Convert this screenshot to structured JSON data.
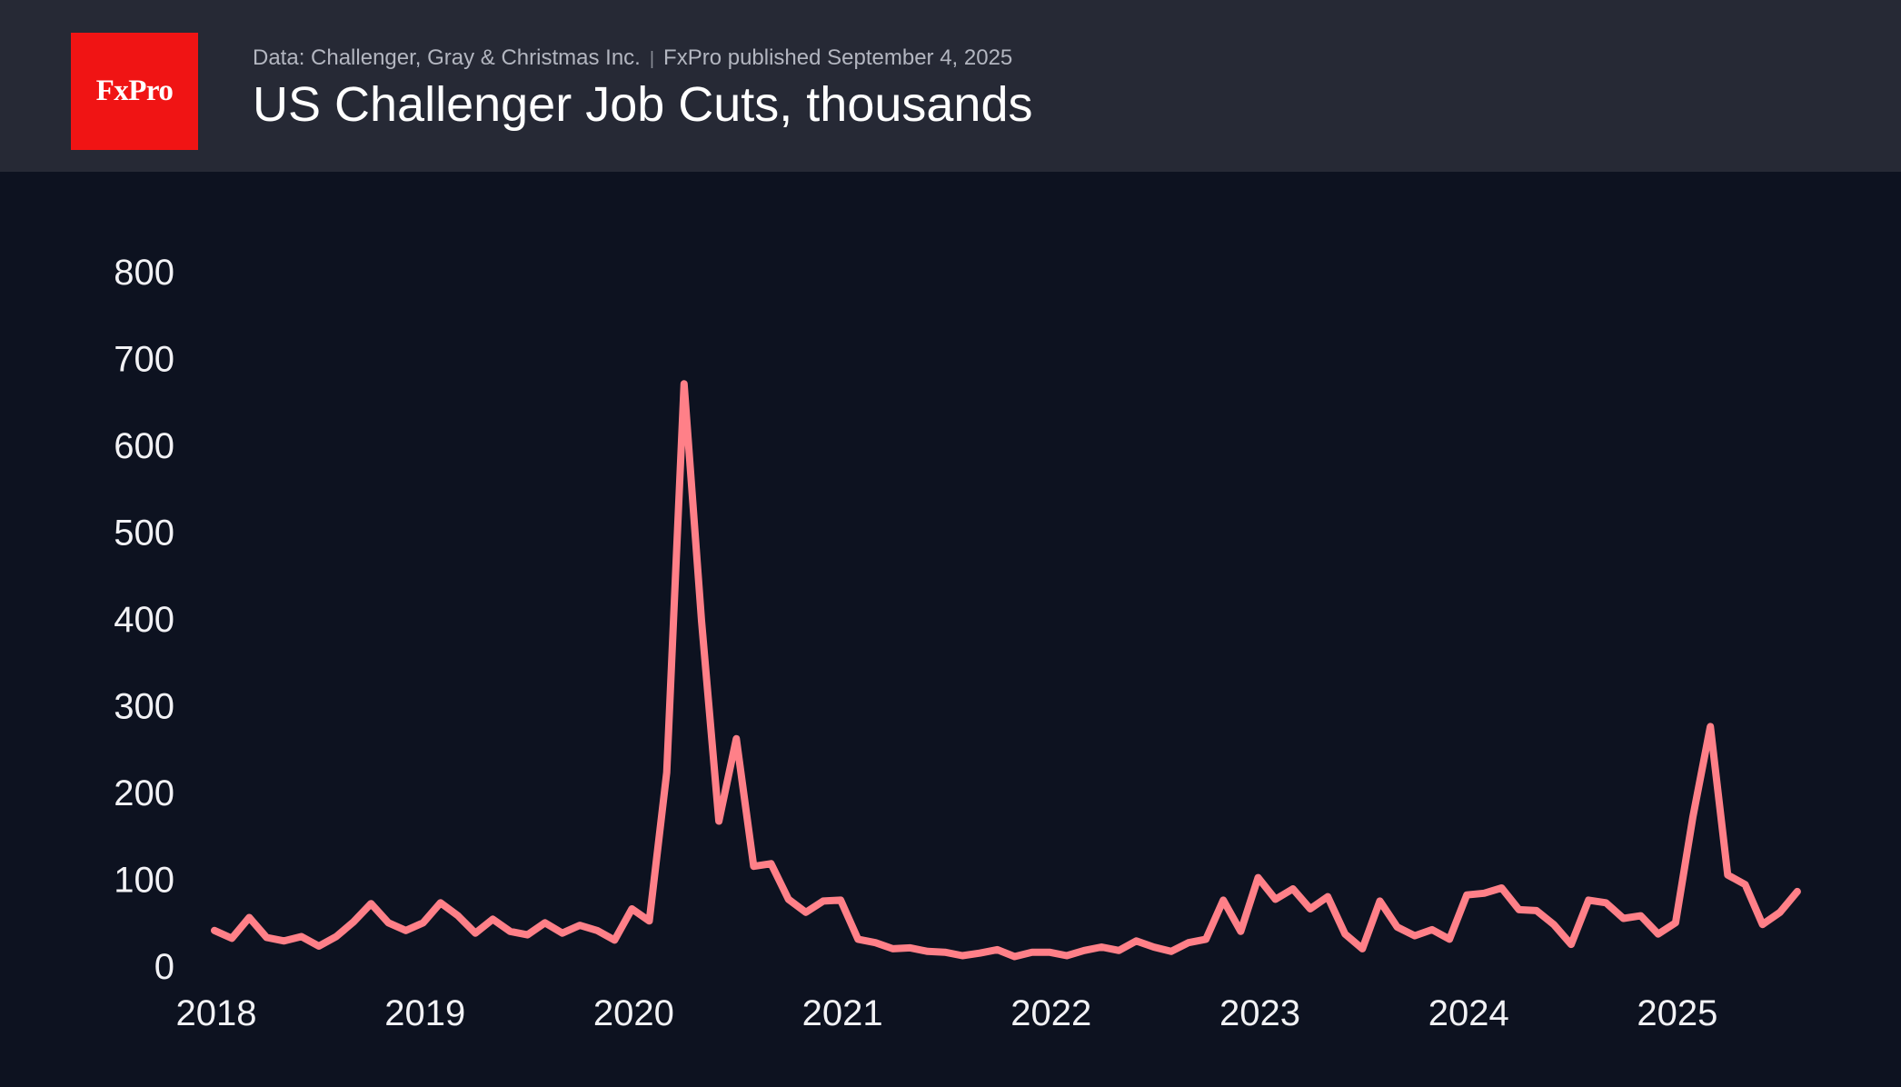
{
  "header": {
    "logo_text": "FxPro",
    "source": "Data: Challenger, Gray & Christmas Inc.",
    "separator": "|",
    "publisher": "FxPro published September 4, 2025"
  },
  "colors": {
    "background": "#0d1220",
    "header_background": "#262935",
    "logo_red": "#f01414",
    "line": "#ff8088"
  },
  "chart_data": {
    "type": "line",
    "title": "US Challenger Job Cuts, thousands",
    "xlabel": "",
    "ylabel": "",
    "ylim": [
      0,
      800
    ],
    "yticks": [
      0,
      100,
      200,
      300,
      400,
      500,
      600,
      700,
      800
    ],
    "xticks": [
      "2018",
      "2019",
      "2020",
      "2021",
      "2022",
      "2023",
      "2024",
      "2025"
    ],
    "grid": false,
    "x_start": "2018-01",
    "frequency": "monthly",
    "series": [
      {
        "values": [
          41,
          32,
          56,
          33,
          29,
          34,
          23,
          34,
          51,
          72,
          50,
          41,
          50,
          73,
          58,
          38,
          54,
          40,
          36,
          50,
          38,
          47,
          41,
          30,
          66,
          52,
          223,
          671,
          398,
          167,
          262,
          115,
          118,
          77,
          62,
          75,
          76,
          31,
          27,
          20,
          21,
          17,
          16,
          12,
          15,
          19,
          11,
          16,
          16,
          12,
          18,
          22,
          18,
          29,
          22,
          17,
          27,
          31,
          76,
          40,
          102,
          77,
          89,
          66,
          80,
          37,
          20,
          75,
          45,
          35,
          42,
          31,
          82,
          84,
          90,
          65,
          64,
          48,
          25,
          76,
          73,
          55,
          58,
          37,
          50,
          172,
          276,
          105,
          94,
          48,
          62,
          86
        ]
      }
    ]
  }
}
